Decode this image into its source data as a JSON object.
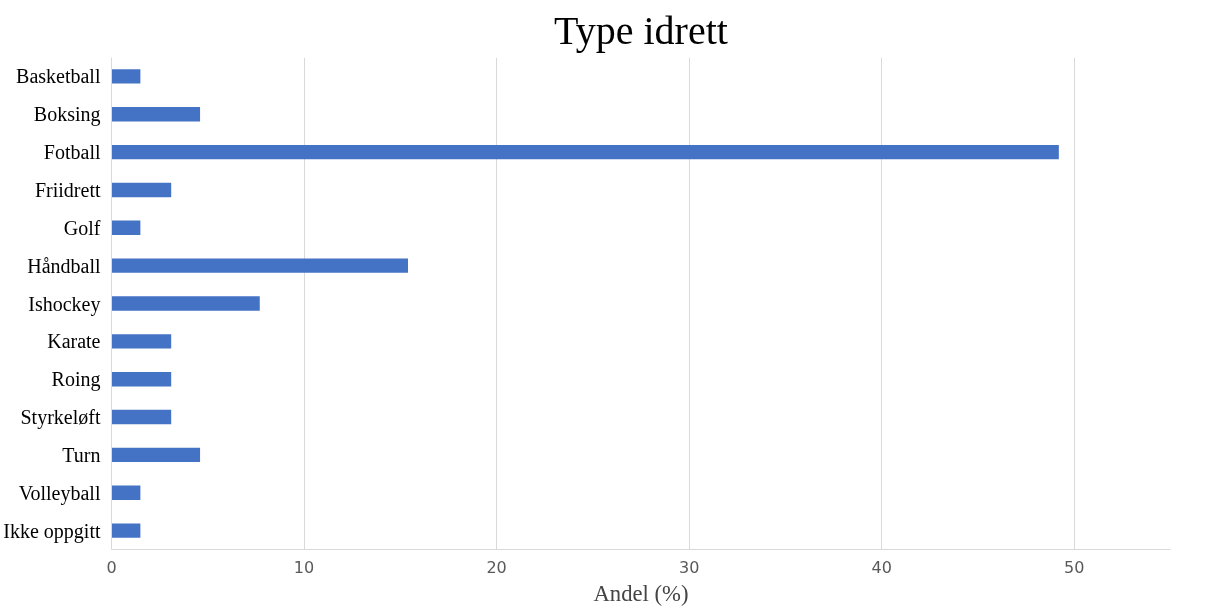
{
  "chart_data": {
    "type": "bar",
    "orientation": "horizontal",
    "title": "Type idrett",
    "xlabel": "Andel (%)",
    "categories": [
      "Basketball",
      "Boksing",
      "Fotball",
      "Friidrett",
      "Golf",
      "Håndball",
      "Ishockey",
      "Karate",
      "Roing",
      "Styrkeløft",
      "Turn",
      "Volleyball",
      "Ikke oppgitt"
    ],
    "values": [
      1.5,
      4.6,
      49.2,
      3.1,
      1.5,
      15.4,
      7.7,
      3.1,
      3.1,
      3.1,
      4.6,
      1.5,
      1.5
    ],
    "color": "#4472c4",
    "xlim": [
      0,
      55
    ],
    "xticks": [
      0,
      10,
      20,
      30,
      40,
      50
    ],
    "grid": "x"
  }
}
